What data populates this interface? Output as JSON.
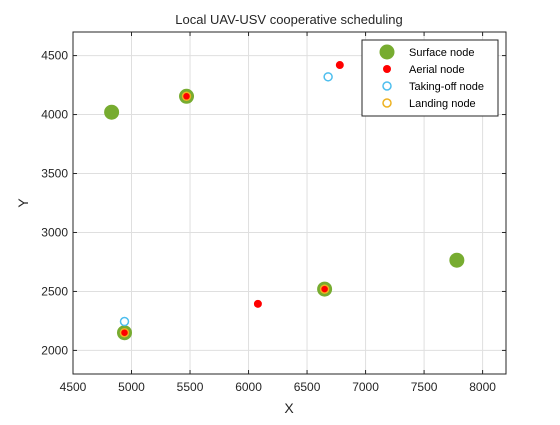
{
  "chart_data": {
    "type": "scatter",
    "title": "Local UAV-USV cooperative scheduling",
    "xlabel": "X",
    "ylabel": "Y",
    "xlim": [
      4500,
      8200
    ],
    "ylim": [
      1800,
      4700
    ],
    "xticks": [
      4500,
      5000,
      5500,
      6000,
      6500,
      7000,
      7500,
      8000
    ],
    "yticks": [
      2000,
      2500,
      3000,
      3500,
      4000,
      4500
    ],
    "grid": true,
    "legend_position": "top-right",
    "series": [
      {
        "name": "Surface node",
        "marker": "filled-circle-large",
        "color": "#77ac30",
        "points": [
          [
            4830,
            4020
          ],
          [
            5470,
            4155
          ],
          [
            4940,
            2150
          ],
          [
            6650,
            2520
          ],
          [
            7780,
            2765
          ]
        ]
      },
      {
        "name": "Aerial node",
        "marker": "filled-circle",
        "color": "#ff0000",
        "points": [
          [
            6780,
            4420
          ],
          [
            5470,
            4155
          ],
          [
            4940,
            2150
          ],
          [
            6080,
            2395
          ],
          [
            6650,
            2520
          ]
        ]
      },
      {
        "name": "Taking-off node",
        "marker": "open-circle",
        "color": "#4dbeee",
        "points": [
          [
            6680,
            4320
          ],
          [
            4940,
            2245
          ]
        ]
      },
      {
        "name": "Landing node",
        "marker": "open-circle",
        "color": "#edb120",
        "points": [
          [
            5470,
            4155
          ],
          [
            4940,
            2150
          ],
          [
            6650,
            2520
          ]
        ]
      }
    ]
  }
}
